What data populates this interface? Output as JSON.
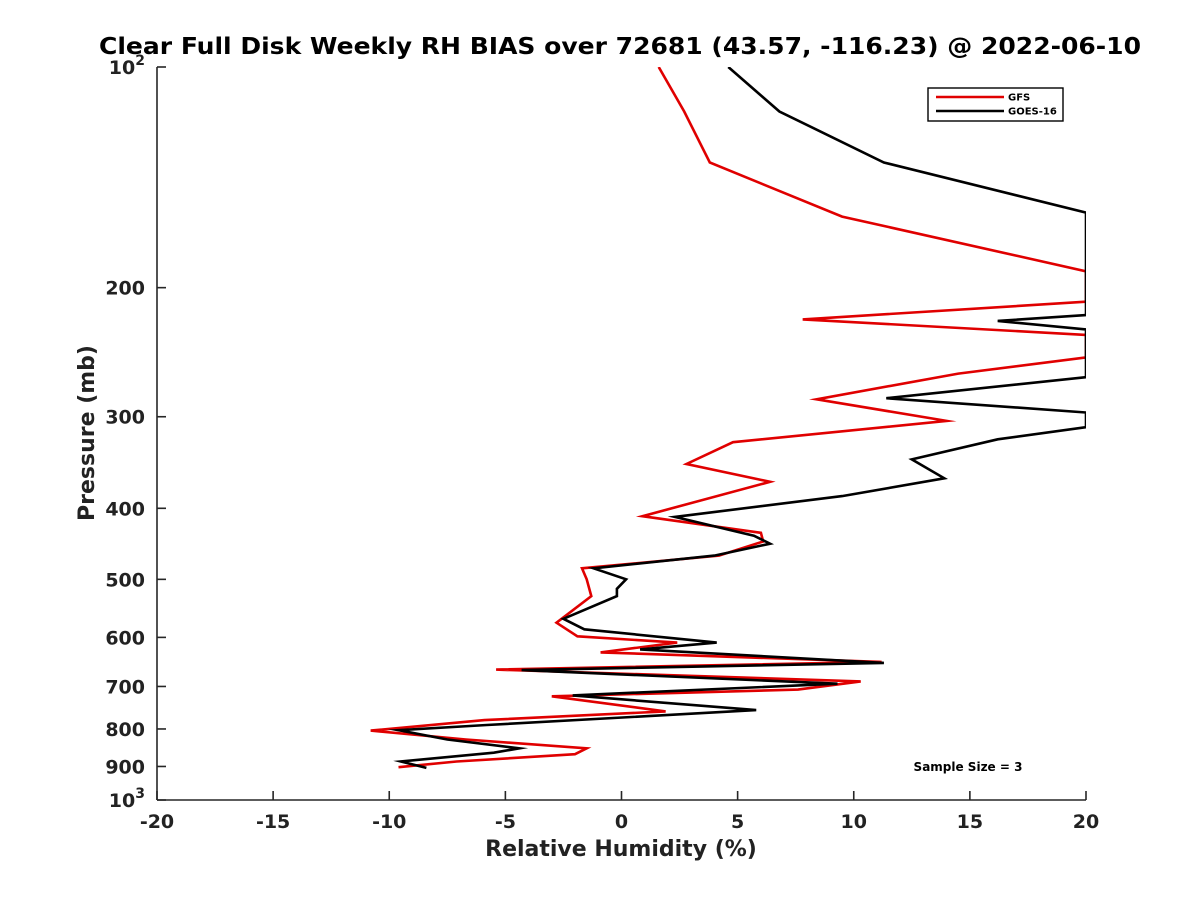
{
  "chart_data": {
    "type": "line",
    "title": "Clear Full Disk Weekly RH BIAS over 72681 (43.57, -116.23) @ 2022-06-10",
    "xlabel": "Relative Humidity (%)",
    "ylabel": "Pressure (mb)",
    "xlim": [
      -20,
      20
    ],
    "ylim": [
      100,
      1000
    ],
    "y_scale": "log",
    "y_reversed": true,
    "grid": false,
    "x_ticks": [
      -20,
      -15,
      -10,
      -5,
      0,
      5,
      10,
      15,
      20
    ],
    "x_tick_labels": [
      "-20",
      "-15",
      "-10",
      "-5",
      "0",
      "5",
      "10",
      "15",
      "20"
    ],
    "y_ticks": [
      100,
      200,
      300,
      400,
      500,
      600,
      700,
      800,
      900,
      1000
    ],
    "y_tick_labels": [
      {
        "base": "10",
        "sup": "2"
      },
      {
        "base": "200",
        "sup": ""
      },
      {
        "base": "300",
        "sup": ""
      },
      {
        "base": "400",
        "sup": ""
      },
      {
        "base": "500",
        "sup": ""
      },
      {
        "base": "600",
        "sup": ""
      },
      {
        "base": "700",
        "sup": ""
      },
      {
        "base": "800",
        "sup": ""
      },
      {
        "base": "900",
        "sup": ""
      },
      {
        "base": "10",
        "sup": "3"
      }
    ],
    "legend_position": "top-right",
    "annotation": "Sample Size = 3",
    "series": [
      {
        "name": "GFS",
        "color": "#e00000",
        "points": [
          [
            1.6,
            100
          ],
          [
            2.7,
            115
          ],
          [
            3.8,
            135
          ],
          [
            9.5,
            160
          ],
          [
            20.0,
            190
          ],
          [
            20.0,
            209
          ],
          [
            7.8,
            221
          ],
          [
            20.0,
            232
          ],
          [
            20.0,
            249
          ],
          [
            14.5,
            262
          ],
          [
            8.4,
            284
          ],
          [
            14.0,
            304
          ],
          [
            4.8,
            325
          ],
          [
            2.8,
            348
          ],
          [
            6.4,
            368
          ],
          [
            0.9,
            410
          ],
          [
            6.0,
            432
          ],
          [
            6.1,
            444
          ],
          [
            4.2,
            464
          ],
          [
            -1.7,
            483
          ],
          [
            -1.5,
            500
          ],
          [
            -1.3,
            527
          ],
          [
            -2.8,
            573
          ],
          [
            -1.9,
            598
          ],
          [
            2.4,
            610
          ],
          [
            -0.9,
            629
          ],
          [
            11.2,
            648
          ],
          [
            -5.4,
            664
          ],
          [
            10.3,
            689
          ],
          [
            7.6,
            707
          ],
          [
            -3.0,
            722
          ],
          [
            1.9,
            757
          ],
          [
            -5.9,
            778
          ],
          [
            -10.8,
            804
          ],
          [
            -6.7,
            827
          ],
          [
            -1.5,
            850
          ],
          [
            -2.0,
            866
          ],
          [
            -7.1,
            886
          ],
          [
            -9.6,
            902
          ]
        ]
      },
      {
        "name": "GOES-16",
        "color": "#000000",
        "points": [
          [
            4.6,
            100
          ],
          [
            6.8,
            115
          ],
          [
            11.3,
            135
          ],
          [
            20.0,
            158
          ],
          [
            20.0,
            218
          ],
          [
            16.2,
            222
          ],
          [
            20.0,
            228
          ],
          [
            20.0,
            265
          ],
          [
            11.4,
            283
          ],
          [
            20.0,
            296
          ],
          [
            20.0,
            310
          ],
          [
            16.2,
            322
          ],
          [
            12.5,
            343
          ],
          [
            13.9,
            364
          ],
          [
            9.5,
            385
          ],
          [
            2.3,
            411
          ],
          [
            5.7,
            436
          ],
          [
            6.4,
            447
          ],
          [
            4.0,
            464
          ],
          [
            -1.2,
            483
          ],
          [
            0.2,
            500
          ],
          [
            -0.2,
            515
          ],
          [
            -0.2,
            527
          ],
          [
            -2.5,
            566
          ],
          [
            -1.6,
            585
          ],
          [
            4.1,
            610
          ],
          [
            0.8,
            623
          ],
          [
            11.3,
            650
          ],
          [
            -4.3,
            665
          ],
          [
            9.3,
            694
          ],
          [
            -2.1,
            720
          ],
          [
            5.8,
            754
          ],
          [
            -5.8,
            790
          ],
          [
            -9.6,
            803
          ],
          [
            -7.5,
            827
          ],
          [
            -4.4,
            850
          ],
          [
            -5.5,
            862
          ],
          [
            -9.5,
            886
          ],
          [
            -8.4,
            904
          ]
        ]
      }
    ]
  }
}
